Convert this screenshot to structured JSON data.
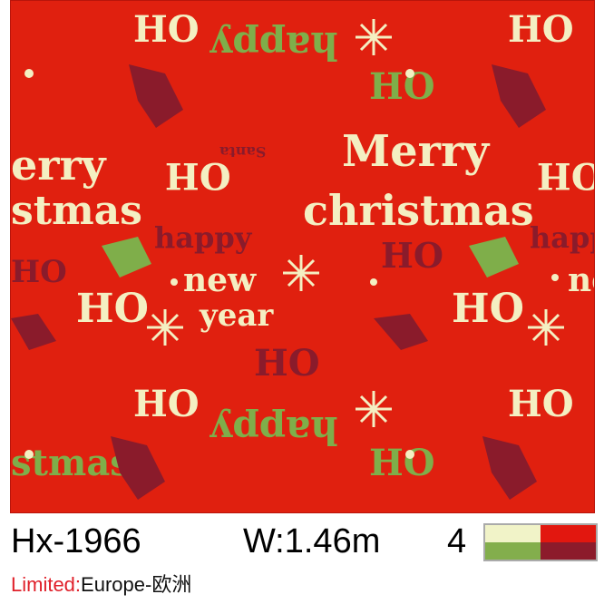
{
  "pattern": {
    "colors": {
      "background": "#e0200f",
      "cream": "#f4efc2",
      "green": "#7fae4a",
      "dark_red": "#8a1b2b"
    },
    "words": {
      "ho": "HO",
      "oh": "OH",
      "happy": "happy",
      "merry": "Merry",
      "christmas": "christmas",
      "erry": "erry",
      "stmas": "stmas",
      "new": "new",
      "year": "year",
      "santa": "Santa",
      "ne": "ne"
    }
  },
  "product": {
    "code": "Hx-1966",
    "width": "W:1.46m",
    "color_count": "4",
    "palette": [
      "#f1f3c8",
      "#e2170f",
      "#83ae4c",
      "#8c1b2b"
    ],
    "limited_label": "Limited:",
    "limited_value": "Europe-欧洲"
  }
}
